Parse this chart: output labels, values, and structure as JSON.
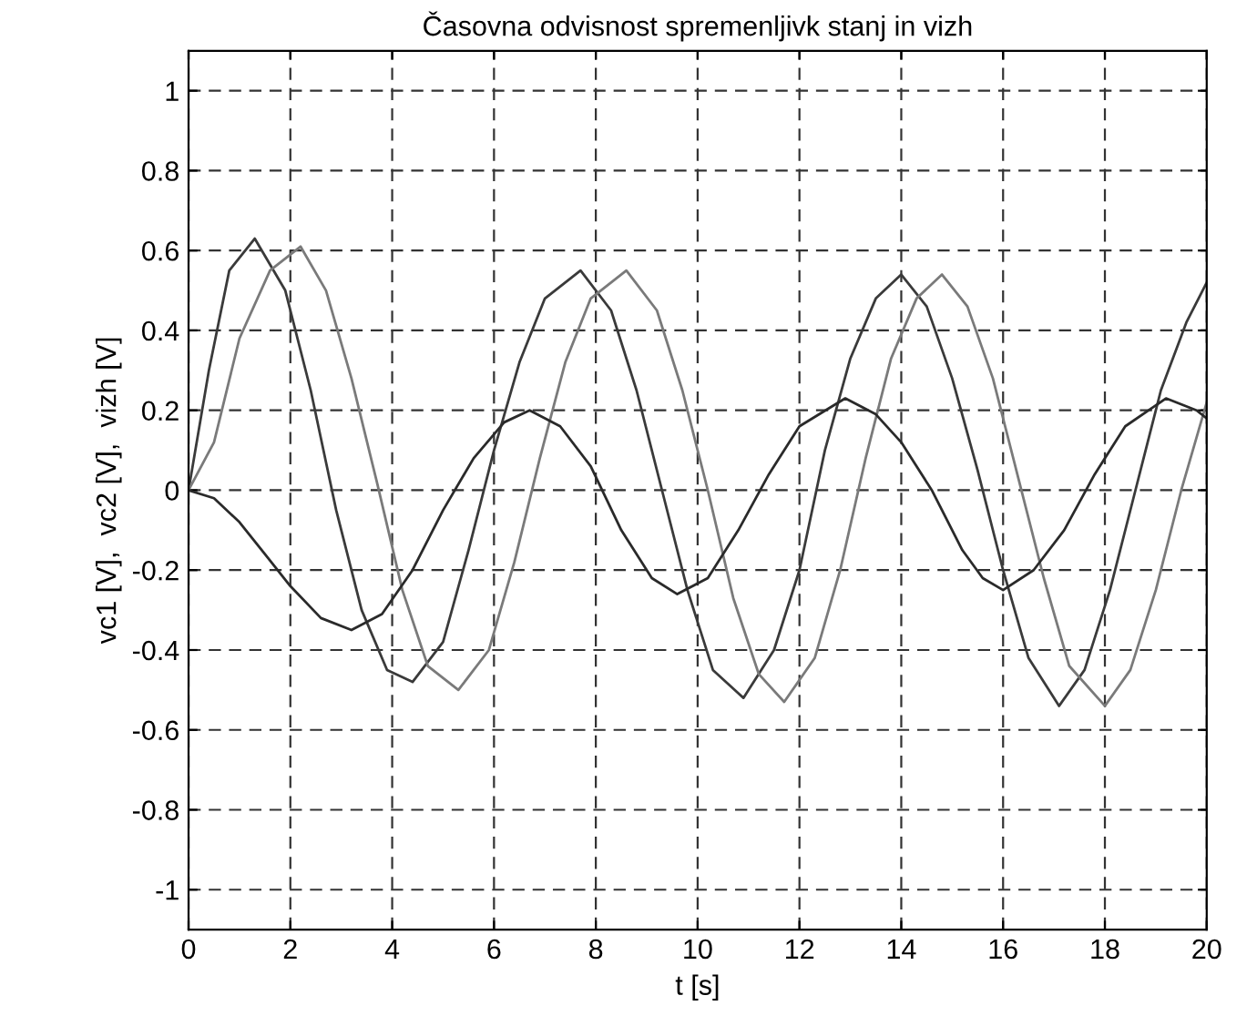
{
  "chart_data": {
    "type": "line",
    "title": "Časovna odvisnost spremenljivk stanj in vizh",
    "xlabel": "t [s]",
    "ylabel": "vc1 [V],  vc2 [V],  vizh [V]",
    "xlim": [
      0,
      20
    ],
    "ylim": [
      -1.1,
      1.1
    ],
    "xticks": [
      0,
      2,
      4,
      6,
      8,
      10,
      12,
      14,
      16,
      18,
      20
    ],
    "yticks": [
      -1,
      -0.8,
      -0.6,
      -0.4,
      -0.2,
      0,
      0.2,
      0.4,
      0.6,
      0.8,
      1
    ],
    "grid": true,
    "line_style": "solid",
    "marker": "none",
    "legend": false,
    "series": [
      {
        "color": "#3a3a3a",
        "x": [
          0,
          0.4,
          0.8,
          1.3,
          1.9,
          2.4,
          2.9,
          3.4,
          3.9,
          4.4,
          5,
          5.5,
          6,
          6.5,
          7,
          7.7,
          8.3,
          8.8,
          9.3,
          9.8,
          10.3,
          10.9,
          11.5,
          12,
          12.5,
          13,
          13.5,
          14,
          14.5,
          15,
          15.5,
          16,
          16.5,
          17.1,
          17.6,
          18.1,
          18.6,
          19.1,
          19.6,
          20
        ],
        "values": [
          0,
          0.3,
          0.55,
          0.63,
          0.5,
          0.25,
          -0.05,
          -0.3,
          -0.45,
          -0.48,
          -0.38,
          -0.15,
          0.1,
          0.32,
          0.48,
          0.55,
          0.45,
          0.25,
          0,
          -0.25,
          -0.45,
          -0.52,
          -0.4,
          -0.2,
          0.1,
          0.33,
          0.48,
          0.54,
          0.46,
          0.28,
          0.05,
          -0.2,
          -0.42,
          -0.54,
          -0.45,
          -0.25,
          0,
          0.25,
          0.42,
          0.52
        ]
      },
      {
        "color": "#7a7a7a",
        "x": [
          0,
          0.5,
          1,
          1.6,
          2.2,
          2.7,
          3.2,
          3.7,
          4.2,
          4.7,
          5.3,
          5.9,
          6.4,
          6.9,
          7.4,
          7.9,
          8.6,
          9.2,
          9.7,
          10.2,
          10.7,
          11.2,
          11.7,
          12.3,
          12.8,
          13.3,
          13.8,
          14.3,
          14.8,
          15.3,
          15.8,
          16.3,
          16.8,
          17.3,
          18,
          18.5,
          19,
          19.5,
          20
        ],
        "values": [
          0,
          0.12,
          0.38,
          0.55,
          0.61,
          0.5,
          0.28,
          0.02,
          -0.25,
          -0.44,
          -0.5,
          -0.4,
          -0.18,
          0.08,
          0.32,
          0.48,
          0.55,
          0.45,
          0.25,
          0,
          -0.27,
          -0.46,
          -0.53,
          -0.42,
          -0.2,
          0.08,
          0.33,
          0.48,
          0.54,
          0.46,
          0.28,
          0.03,
          -0.22,
          -0.44,
          -0.54,
          -0.45,
          -0.25,
          0,
          0.22
        ]
      },
      {
        "color": "#2a2a2a",
        "x": [
          0,
          0.5,
          1,
          1.5,
          2,
          2.6,
          3.2,
          3.8,
          4.4,
          5,
          5.6,
          6.2,
          6.7,
          7.3,
          7.9,
          8.5,
          9.1,
          9.6,
          10.2,
          10.8,
          11.4,
          12,
          12.9,
          13.5,
          14,
          14.6,
          15.2,
          15.6,
          16,
          16.6,
          17.2,
          17.8,
          18.4,
          19.2,
          19.8,
          20
        ],
        "values": [
          0,
          -0.02,
          -0.08,
          -0.16,
          -0.24,
          -0.32,
          -0.35,
          -0.31,
          -0.2,
          -0.05,
          0.08,
          0.17,
          0.2,
          0.16,
          0.06,
          -0.1,
          -0.22,
          -0.26,
          -0.22,
          -0.1,
          0.04,
          0.16,
          0.23,
          0.19,
          0.12,
          0,
          -0.15,
          -0.22,
          -0.25,
          -0.2,
          -0.1,
          0.04,
          0.16,
          0.23,
          0.2,
          0.18
        ]
      }
    ]
  }
}
